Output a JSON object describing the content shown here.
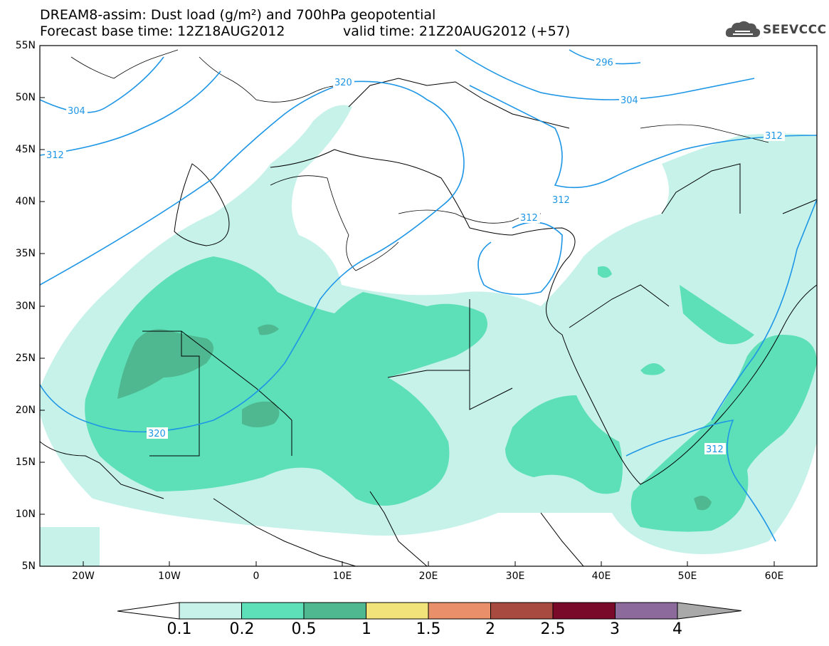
{
  "header": {
    "title_line1": "DREAM8-assim: Dust load (g/m²) and 700hPa geopotential",
    "title_line2": "Forecast base time: 12Z18AUG2012",
    "valid_time": "valid time: 21Z20AUG2012 (+57)",
    "logo_text": "SEEVCCC",
    "logo_icon": "cloud-icon"
  },
  "map": {
    "lat_labels": [
      "55N",
      "50N",
      "45N",
      "40N",
      "35N",
      "30N",
      "25N",
      "20N",
      "15N",
      "10N",
      "5N"
    ],
    "lon_labels": [
      "20W",
      "10W",
      "0",
      "10E",
      "20E",
      "30E",
      "40E",
      "50E",
      "60E"
    ],
    "contour_labels": [
      "296",
      "304",
      "304",
      "312",
      "320",
      "312",
      "312",
      "312",
      "320",
      "312"
    ],
    "contour_color": "#1e96e6",
    "land_color": "#ffffff",
    "border_color": "#000000"
  },
  "colorbar": {
    "labels": [
      "0.1",
      "0.2",
      "0.5",
      "1",
      "1.5",
      "2",
      "2.5",
      "3",
      "4"
    ],
    "colors": [
      "#c6f2ea",
      "#5de0b7",
      "#4fb891",
      "#f2e27a",
      "#e9906a",
      "#a84a3f",
      "#7a0a2a",
      "#8c6a9c",
      "#a9a9a9"
    ],
    "under_color": "#ffffff"
  }
}
